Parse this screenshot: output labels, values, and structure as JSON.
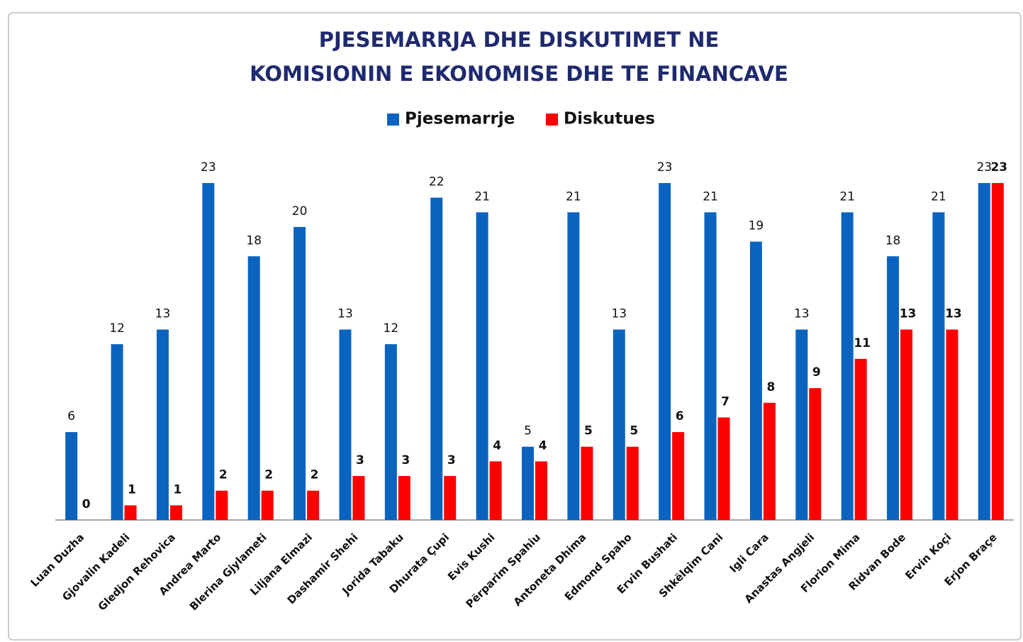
{
  "chart_data": {
    "type": "bar",
    "title": [
      "PJESEMARRJA DHE DISKUTIMET NE",
      "KOMISIONIN E EKONOMISE DHE TE FINANCAVE"
    ],
    "categories": [
      "Luan Duzha",
      "Gjovalin Kadeli",
      "Gledjon Rehovica",
      "Andrea Marto",
      "Blerina Gjylameti",
      "Liljana Elmazi",
      "Dashamir Shehi",
      "Jorida Tabaku",
      "Dhurata Çupi",
      "Evis Kushi",
      "Përparim Spahiu",
      "Antoneta Dhima",
      "Edmond Spaho",
      "Ervin Bushati",
      "Shkëlqim Cani",
      "Igli Cara",
      "Anastas Angjeli",
      "Florion Mima",
      "Ridvan Bode",
      "Ervin Koçi",
      "Erjon Braçe"
    ],
    "series": [
      {
        "name": "Pjesemarrje",
        "color": "#0b63c0",
        "values": [
          6,
          12,
          13,
          23,
          18,
          20,
          13,
          12,
          22,
          21,
          5,
          21,
          13,
          23,
          21,
          19,
          13,
          21,
          18,
          21,
          23
        ]
      },
      {
        "name": "Diskutues",
        "color": "#ff0000",
        "values": [
          0,
          1,
          1,
          2,
          2,
          2,
          3,
          3,
          3,
          4,
          4,
          5,
          5,
          6,
          7,
          8,
          9,
          11,
          13,
          13,
          23
        ]
      }
    ],
    "ylim": [
      0,
      23
    ]
  }
}
